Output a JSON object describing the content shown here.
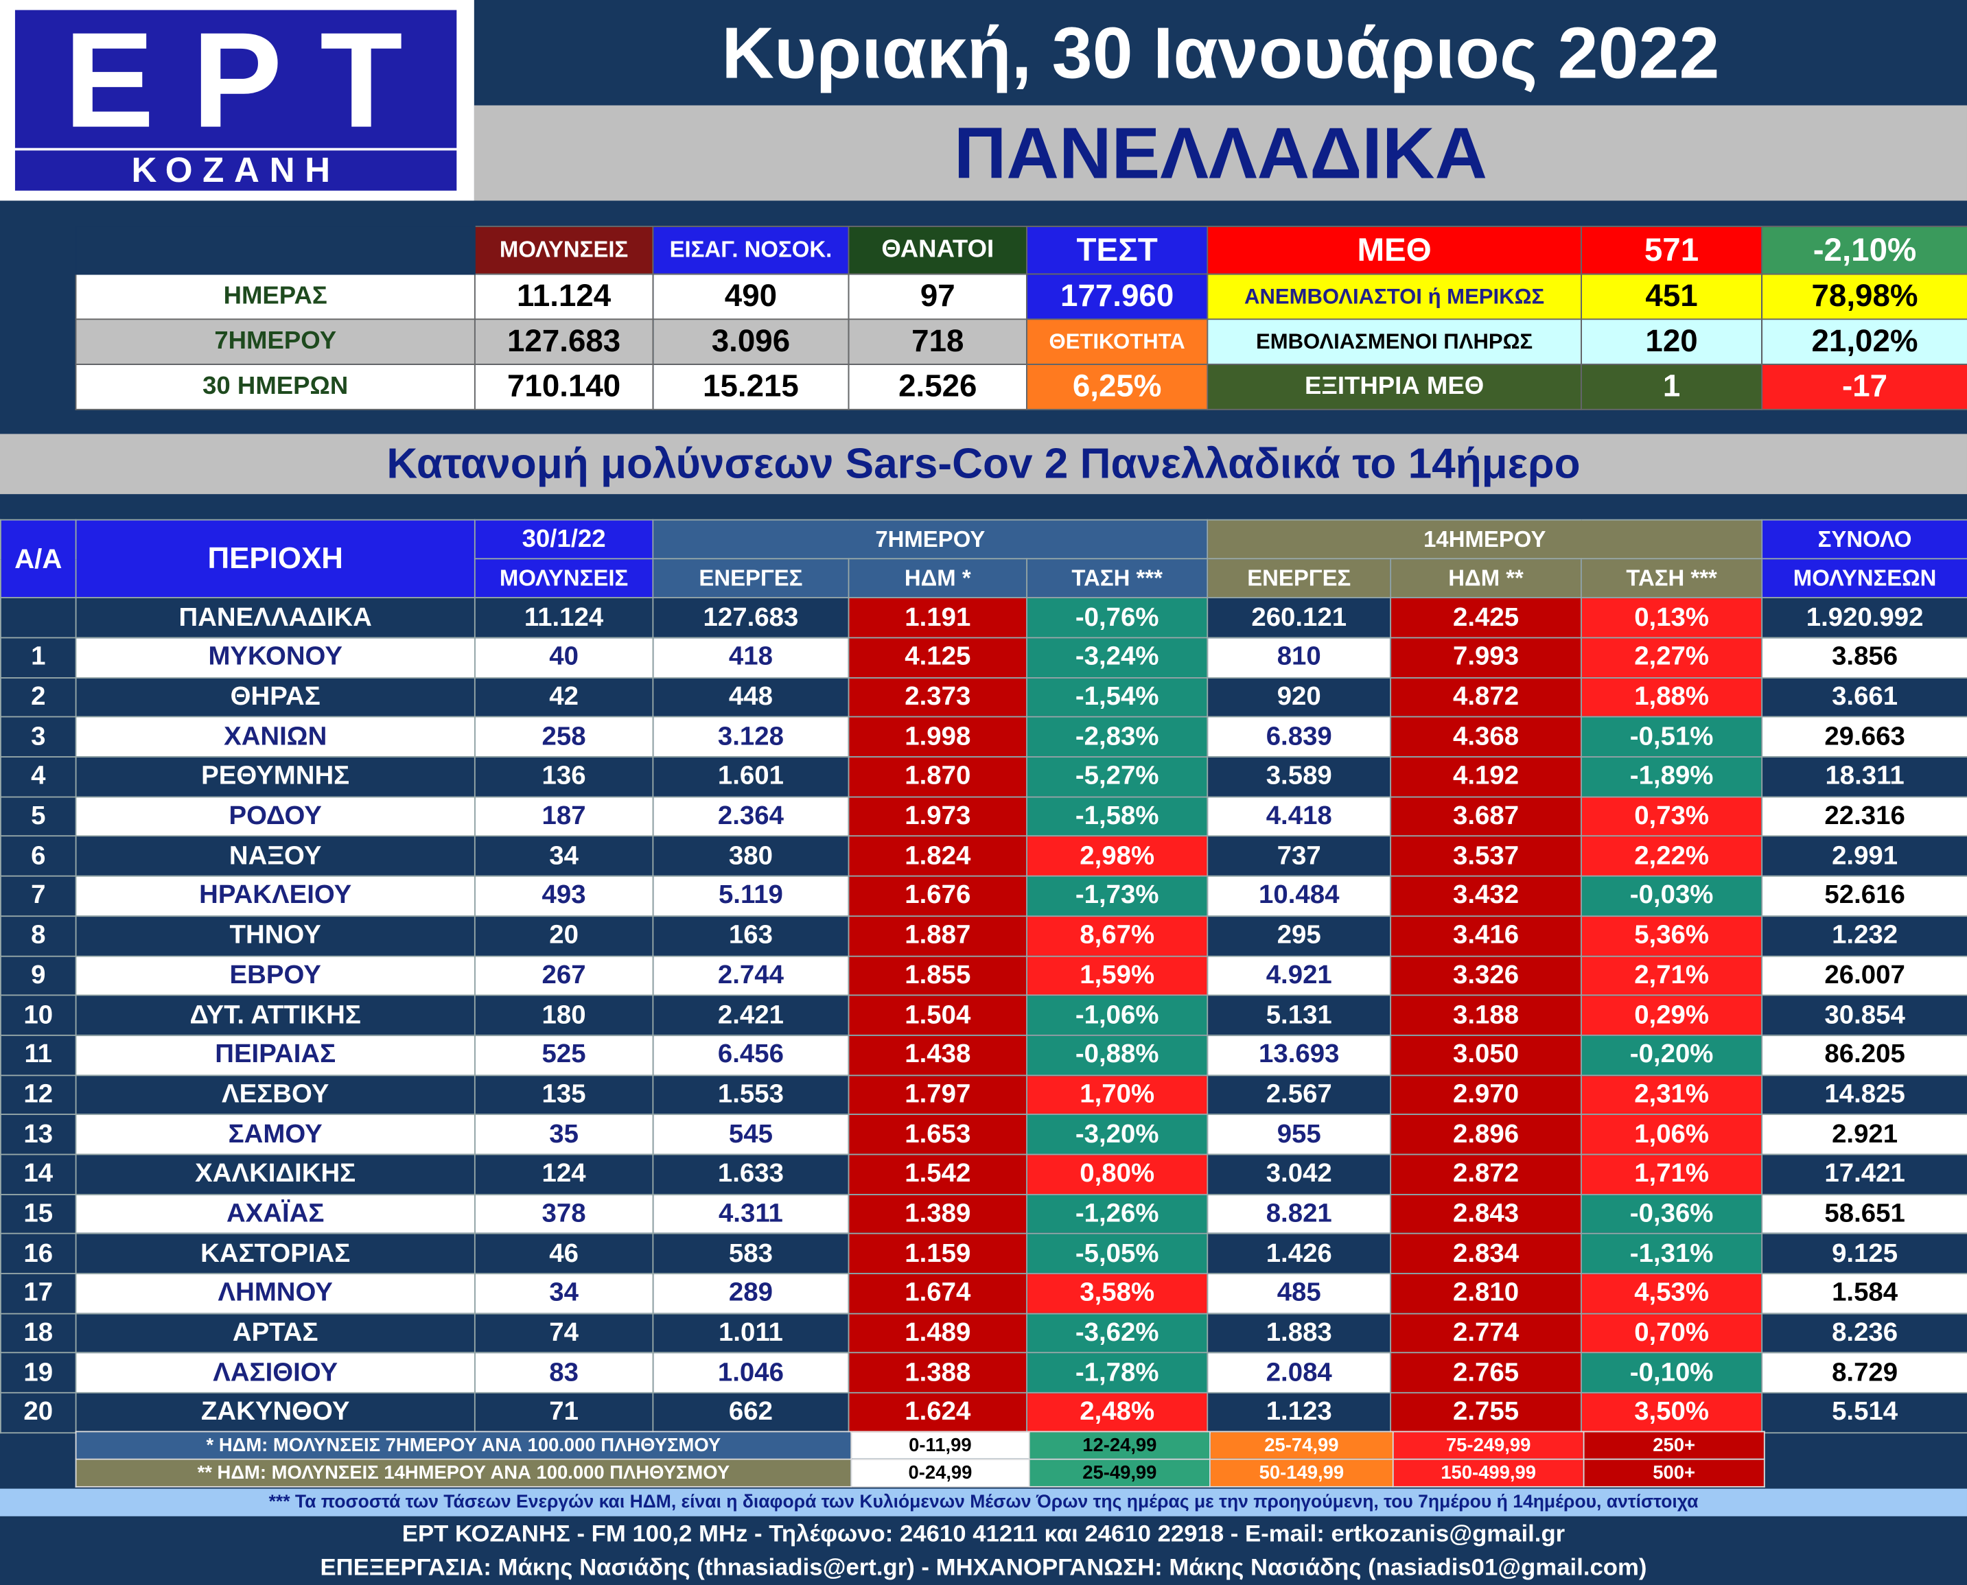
{
  "header": {
    "logo_main": "ΕΡΤ",
    "logo_sub": "ΚΟΖΑΝΗ",
    "date": "Κυριακή, 30 Ιανουάριος 2022",
    "region": "ΠΑΝΕΛΛΑΔΙΚΑ"
  },
  "summary": {
    "headers": [
      "ΜΟΛΥΝΣΕΙΣ",
      "ΕΙΣΑΓ. ΝΟΣΟΚ.",
      "ΘΑΝΑΤΟΙ",
      "ΤΕΣΤ"
    ],
    "rows": [
      {
        "label": "ΗΜΕΡΑΣ",
        "infections": "11.124",
        "admissions": "490",
        "deaths": "97"
      },
      {
        "label": "7ΗΜΕΡΟΥ",
        "infections": "127.683",
        "admissions": "3.096",
        "deaths": "718"
      },
      {
        "label": "30 ΗΜΕΡΩΝ",
        "infections": "710.140",
        "admissions": "15.215",
        "deaths": "2.526"
      }
    ],
    "tests": "177.960",
    "positivity_label": "ΘΕΤΙΚΟΤΗΤΑ",
    "positivity": "6,25%",
    "icu": {
      "label": "ΜΕΘ",
      "value": "571",
      "change": "-2,10%",
      "unvax_label": "ΑΝΕΜΒΟΛΙΑΣΤΟΙ ή ΜΕΡΙΚΩΣ",
      "unvax_value": "451",
      "unvax_pct": "78,98%",
      "vax_label": "ΕΜΒΟΛΙΑΣΜΕΝΟΙ ΠΛΗΡΩΣ",
      "vax_value": "120",
      "vax_pct": "21,02%",
      "discharged_label": "ΕΞΙΤΗΡΙΑ ΜΕΘ",
      "discharged_value": "1",
      "discharged_change": "-17"
    }
  },
  "distribution_title": "Κατανομή μολύνσεων Sars-Cov 2 Πανελλαδικά το 14ήμερο",
  "table": {
    "h_aa": "Α/Α",
    "h_area": "ΠΕΡΙΟΧΗ",
    "h_date": "30/1/22",
    "h_date_sub": "ΜΟΛΥΝΣΕΙΣ",
    "h_7day": "7ΗΜΕΡΟΥ",
    "h_14day": "14ΗΜΕΡΟΥ",
    "h_total": "ΣΥΝΟΛΟ",
    "h_total_sub": "ΜΟΛΥΝΣΕΩΝ",
    "h_active7": "ΕΝΕΡΓΕΣ",
    "h_hdm7": "ΗΔΜ *",
    "h_trend7": "ΤΑΣΗ ***",
    "h_active14": "ΕΝΕΡΓΕΣ",
    "h_hdm14": "ΗΔΜ **",
    "h_trend14": "ΤΑΣΗ ***",
    "national": {
      "area": "ΠΑΝΕΛΛΑΔΙΚΑ",
      "today": "11.124",
      "active7": "127.683",
      "hdm7": "1.191",
      "trend7": "-0,76%",
      "active14": "260.121",
      "hdm14": "2.425",
      "trend14": "0,13%",
      "total": "1.920.992"
    },
    "rows": [
      {
        "aa": "1",
        "area": "ΜΥΚΟΝΟΥ",
        "today": "40",
        "active7": "418",
        "hdm7": "4.125",
        "trend7": "-3,24%",
        "active14": "810",
        "hdm14": "7.993",
        "trend14": "2,27%",
        "total": "3.856"
      },
      {
        "aa": "2",
        "area": "ΘΗΡΑΣ",
        "today": "42",
        "active7": "448",
        "hdm7": "2.373",
        "trend7": "-1,54%",
        "active14": "920",
        "hdm14": "4.872",
        "trend14": "1,88%",
        "total": "3.661"
      },
      {
        "aa": "3",
        "area": "ΧΑΝΙΩΝ",
        "today": "258",
        "active7": "3.128",
        "hdm7": "1.998",
        "trend7": "-2,83%",
        "active14": "6.839",
        "hdm14": "4.368",
        "trend14": "-0,51%",
        "total": "29.663"
      },
      {
        "aa": "4",
        "area": "ΡΕΘΥΜΝΗΣ",
        "today": "136",
        "active7": "1.601",
        "hdm7": "1.870",
        "trend7": "-5,27%",
        "active14": "3.589",
        "hdm14": "4.192",
        "trend14": "-1,89%",
        "total": "18.311"
      },
      {
        "aa": "5",
        "area": "ΡΟΔΟΥ",
        "today": "187",
        "active7": "2.364",
        "hdm7": "1.973",
        "trend7": "-1,58%",
        "active14": "4.418",
        "hdm14": "3.687",
        "trend14": "0,73%",
        "total": "22.316"
      },
      {
        "aa": "6",
        "area": "ΝΑΞΟΥ",
        "today": "34",
        "active7": "380",
        "hdm7": "1.824",
        "trend7": "2,98%",
        "active14": "737",
        "hdm14": "3.537",
        "trend14": "2,22%",
        "total": "2.991"
      },
      {
        "aa": "7",
        "area": "ΗΡΑΚΛΕΙΟΥ",
        "today": "493",
        "active7": "5.119",
        "hdm7": "1.676",
        "trend7": "-1,73%",
        "active14": "10.484",
        "hdm14": "3.432",
        "trend14": "-0,03%",
        "total": "52.616"
      },
      {
        "aa": "8",
        "area": "ΤΗΝΟΥ",
        "today": "20",
        "active7": "163",
        "hdm7": "1.887",
        "trend7": "8,67%",
        "active14": "295",
        "hdm14": "3.416",
        "trend14": "5,36%",
        "total": "1.232"
      },
      {
        "aa": "9",
        "area": "ΕΒΡΟΥ",
        "today": "267",
        "active7": "2.744",
        "hdm7": "1.855",
        "trend7": "1,59%",
        "active14": "4.921",
        "hdm14": "3.326",
        "trend14": "2,71%",
        "total": "26.007"
      },
      {
        "aa": "10",
        "area": "ΔΥΤ. ΑΤΤΙΚΗΣ",
        "today": "180",
        "active7": "2.421",
        "hdm7": "1.504",
        "trend7": "-1,06%",
        "active14": "5.131",
        "hdm14": "3.188",
        "trend14": "0,29%",
        "total": "30.854"
      },
      {
        "aa": "11",
        "area": "ΠΕΙΡΑΙΑΣ",
        "today": "525",
        "active7": "6.456",
        "hdm7": "1.438",
        "trend7": "-0,88%",
        "active14": "13.693",
        "hdm14": "3.050",
        "trend14": "-0,20%",
        "total": "86.205"
      },
      {
        "aa": "12",
        "area": "ΛΕΣΒΟΥ",
        "today": "135",
        "active7": "1.553",
        "hdm7": "1.797",
        "trend7": "1,70%",
        "active14": "2.567",
        "hdm14": "2.970",
        "trend14": "2,31%",
        "total": "14.825"
      },
      {
        "aa": "13",
        "area": "ΣΑΜΟΥ",
        "today": "35",
        "active7": "545",
        "hdm7": "1.653",
        "trend7": "-3,20%",
        "active14": "955",
        "hdm14": "2.896",
        "trend14": "1,06%",
        "total": "2.921"
      },
      {
        "aa": "14",
        "area": "ΧΑΛΚΙΔΙΚΗΣ",
        "today": "124",
        "active7": "1.633",
        "hdm7": "1.542",
        "trend7": "0,80%",
        "active14": "3.042",
        "hdm14": "2.872",
        "trend14": "1,71%",
        "total": "17.421"
      },
      {
        "aa": "15",
        "area": "ΑΧΑΪΑΣ",
        "today": "378",
        "active7": "4.311",
        "hdm7": "1.389",
        "trend7": "-1,26%",
        "active14": "8.821",
        "hdm14": "2.843",
        "trend14": "-0,36%",
        "total": "58.651"
      },
      {
        "aa": "16",
        "area": "ΚΑΣΤΟΡΙΑΣ",
        "today": "46",
        "active7": "583",
        "hdm7": "1.159",
        "trend7": "-5,05%",
        "active14": "1.426",
        "hdm14": "2.834",
        "trend14": "-1,31%",
        "total": "9.125"
      },
      {
        "aa": "17",
        "area": "ΛΗΜΝΟΥ",
        "today": "34",
        "active7": "289",
        "hdm7": "1.674",
        "trend7": "3,58%",
        "active14": "485",
        "hdm14": "2.810",
        "trend14": "4,53%",
        "total": "1.584"
      },
      {
        "aa": "18",
        "area": "ΑΡΤΑΣ",
        "today": "74",
        "active7": "1.011",
        "hdm7": "1.489",
        "trend7": "-3,62%",
        "active14": "1.883",
        "hdm14": "2.774",
        "trend14": "0,70%",
        "total": "8.236"
      },
      {
        "aa": "19",
        "area": "ΛΑΣΙΘΙΟΥ",
        "today": "83",
        "active7": "1.046",
        "hdm7": "1.388",
        "trend7": "-1,78%",
        "active14": "2.084",
        "hdm14": "2.765",
        "trend14": "-0,10%",
        "total": "8.729"
      },
      {
        "aa": "20",
        "area": "ΖΑΚΥΝΘΟΥ",
        "today": "71",
        "active7": "662",
        "hdm7": "1.624",
        "trend7": "2,48%",
        "active14": "1.123",
        "hdm14": "2.755",
        "trend14": "3,50%",
        "total": "5.514"
      }
    ]
  },
  "legend": {
    "note7": "* ΗΔΜ: ΜΟΛΥΝΣΕΙΣ 7ΗΜΕΡΟΥ ΑΝΑ 100.000 ΠΛΗΘΥΣΜΟΥ",
    "note14": "** ΗΔΜ: ΜΟΛΥΝΣΕΙΣ 14ΗΜΕΡΟΥ ΑΝΑ 100.000 ΠΛΗΘΥΣΜΟΥ",
    "ranges7": [
      "0-11,99",
      "12-24,99",
      "25-74,99",
      "75-249,99",
      "250+"
    ],
    "ranges14": [
      "0-24,99",
      "25-49,99",
      "50-149,99",
      "150-499,99",
      "500+"
    ],
    "range_colors": [
      "#ffffff",
      "#2ea37a",
      "#ff7f1f",
      "#ff2020",
      "#c00000"
    ]
  },
  "footer": {
    "note": "*** Τα ποσοστά των Τάσεων Ενεργών και ΗΔΜ, είναι η διαφορά των Κυλιόμενων Μέσων Όρων της ημέρας με την προηγούμενη, του 7ημέρου ή 14ημέρου, αντίστοιχα",
    "line1": "ΕΡΤ ΚΟΖΑΝΗΣ - FM 100,2 MHz - Τηλέφωνο:  24610 41211 και 24610 22918 - E-mail: ertkozanis@gmail.gr",
    "line2": "ΕΠΕΞΕΡΓΑΣΙΑ: Μάκης Νασιάδης (thnasiadis@ert.gr) - ΜΗΧΑΝΟΡΓΑΝΩΣΗ: Μάκης Νασιάδης (nasiadis01@gmail.com)"
  },
  "colors": {
    "navy": "#17375e",
    "blue": "#1f1fe6",
    "red_dark": "#c00000",
    "red": "#ff1e1e",
    "teal": "#1a8f7a",
    "olive": "#7f7f5a",
    "yellow": "#ffff00",
    "light_cyan": "#ccffff",
    "dark_green": "#3f5f2a",
    "green": "#3a9a5c",
    "orange": "#ff7a1f",
    "maroon": "#7f1414"
  }
}
